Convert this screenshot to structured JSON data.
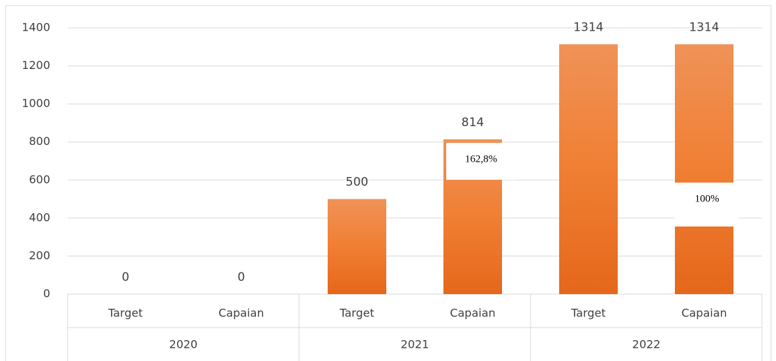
{
  "chart_data": {
    "type": "bar",
    "groups": [
      "2020",
      "2021",
      "2022"
    ],
    "categories": [
      "Target",
      "Capaian",
      "Target",
      "Capaian",
      "Target",
      "Capaian"
    ],
    "values": [
      0,
      0,
      500,
      814,
      1314,
      1314
    ],
    "color": "#ed7d31",
    "ylim": [
      0,
      1400
    ],
    "yticks": [
      0,
      200,
      400,
      600,
      800,
      1000,
      1200,
      1400
    ],
    "grid": true,
    "annotations": [
      {
        "text": "162,8%"
      },
      {
        "text": "100%"
      }
    ]
  }
}
